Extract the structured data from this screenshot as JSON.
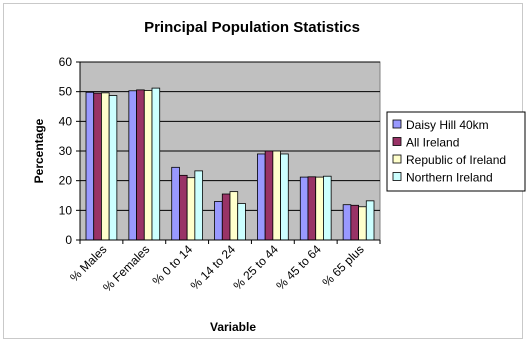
{
  "chart_data": {
    "type": "bar",
    "title": "Principal Population Statistics",
    "xlabel": "Variable",
    "ylabel": "Percentage",
    "ylim": [
      0,
      60
    ],
    "yticks": [
      0,
      10,
      20,
      30,
      40,
      50,
      60
    ],
    "grid": true,
    "legend_position": "right",
    "plot_background": "#c0c0c0",
    "categories": [
      "% Males",
      "% Females",
      "% 0 to 14",
      "% 14 to 24",
      "% 25 to 44",
      "% 45 to 64",
      "% 65 plus"
    ],
    "series": [
      {
        "name": "Daisy Hill 40km",
        "color": "#9999ff",
        "values": [
          49.8,
          50.3,
          24.5,
          13.0,
          29.0,
          21.2,
          11.9
        ]
      },
      {
        "name": "All Ireland",
        "color": "#993366",
        "values": [
          49.5,
          50.6,
          21.8,
          15.5,
          30.0,
          21.3,
          11.7
        ]
      },
      {
        "name": "Republic of Ireland",
        "color": "#ffffcc",
        "values": [
          49.6,
          50.4,
          21.0,
          16.3,
          30.0,
          21.2,
          11.2
        ]
      },
      {
        "name": "Northern Ireland",
        "color": "#ccffff",
        "values": [
          48.7,
          51.2,
          23.3,
          12.3,
          29.0,
          21.5,
          13.2
        ]
      }
    ]
  }
}
